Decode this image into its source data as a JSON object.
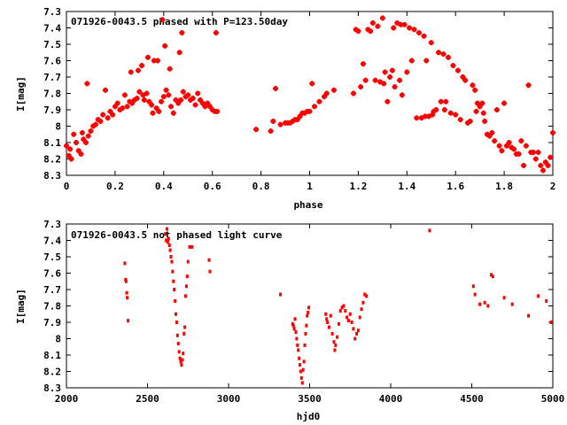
{
  "chart_data": [
    {
      "type": "scatter",
      "title": "071926-0043.5 phased with P=123.50day",
      "xlabel": "phase",
      "ylabel": "I[mag]",
      "xlim": [
        0,
        2
      ],
      "ylim": [
        8.3,
        7.3
      ],
      "y_inverted": true,
      "grid": false,
      "marker_color": "#ff0000",
      "marker_style": "cross",
      "x_ticks": [
        "0",
        "0.2",
        "0.4",
        "0.6",
        "0.8",
        "1",
        "1.2",
        "1.4",
        "1.6",
        "1.8",
        "2"
      ],
      "y_ticks": [
        "7.3",
        "7.4",
        "7.5",
        "7.6",
        "7.7",
        "7.8",
        "7.9",
        "8",
        "8.1",
        "8.2",
        "8.3"
      ],
      "points": [
        [
          0.0,
          8.12
        ],
        [
          0.01,
          8.18
        ],
        [
          0.015,
          8.14
        ],
        [
          0.02,
          8.2
        ],
        [
          0.03,
          8.05
        ],
        [
          0.04,
          8.1
        ],
        [
          0.05,
          8.15
        ],
        [
          0.06,
          8.17
        ],
        [
          0.065,
          8.04
        ],
        [
          0.07,
          8.08
        ],
        [
          0.08,
          8.1
        ],
        [
          0.085,
          7.74
        ],
        [
          0.09,
          8.06
        ],
        [
          0.1,
          8.03
        ],
        [
          0.11,
          8.0
        ],
        [
          0.12,
          7.99
        ],
        [
          0.13,
          7.96
        ],
        [
          0.14,
          7.97
        ],
        [
          0.15,
          7.93
        ],
        [
          0.16,
          7.78
        ],
        [
          0.17,
          7.95
        ],
        [
          0.18,
          7.91
        ],
        [
          0.19,
          7.93
        ],
        [
          0.2,
          7.88
        ],
        [
          0.21,
          7.86
        ],
        [
          0.22,
          7.9
        ],
        [
          0.23,
          7.89
        ],
        [
          0.24,
          7.81
        ],
        [
          0.25,
          7.88
        ],
        [
          0.26,
          7.85
        ],
        [
          0.265,
          7.67
        ],
        [
          0.27,
          7.86
        ],
        [
          0.28,
          7.84
        ],
        [
          0.29,
          7.83
        ],
        [
          0.295,
          7.66
        ],
        [
          0.3,
          7.79
        ],
        [
          0.31,
          7.63
        ],
        [
          0.315,
          7.81
        ],
        [
          0.32,
          7.84
        ],
        [
          0.33,
          7.8
        ],
        [
          0.335,
          7.58
        ],
        [
          0.34,
          7.85
        ],
        [
          0.35,
          7.87
        ],
        [
          0.355,
          7.92
        ],
        [
          0.36,
          7.6
        ],
        [
          0.37,
          7.89
        ],
        [
          0.375,
          7.6
        ],
        [
          0.38,
          7.91
        ],
        [
          0.39,
          7.85
        ],
        [
          0.395,
          7.35
        ],
        [
          0.4,
          7.82
        ],
        [
          0.405,
          7.51
        ],
        [
          0.41,
          7.78
        ],
        [
          0.42,
          7.81
        ],
        [
          0.425,
          7.65
        ],
        [
          0.43,
          7.88
        ],
        [
          0.44,
          7.92
        ],
        [
          0.45,
          7.84
        ],
        [
          0.46,
          7.86
        ],
        [
          0.465,
          7.55
        ],
        [
          0.47,
          7.84
        ],
        [
          0.475,
          7.43
        ],
        [
          0.48,
          7.79
        ],
        [
          0.49,
          7.82
        ],
        [
          0.5,
          7.81
        ],
        [
          0.51,
          7.84
        ],
        [
          0.52,
          7.83
        ],
        [
          0.53,
          7.87
        ],
        [
          0.54,
          7.8
        ],
        [
          0.55,
          7.84
        ],
        [
          0.56,
          7.86
        ],
        [
          0.57,
          7.88
        ],
        [
          0.58,
          7.86
        ],
        [
          0.59,
          7.88
        ],
        [
          0.6,
          7.9
        ],
        [
          0.61,
          7.91
        ],
        [
          0.615,
          7.43
        ],
        [
          0.62,
          7.91
        ],
        [
          0.78,
          8.02
        ],
        [
          0.84,
          8.03
        ],
        [
          0.85,
          7.97
        ],
        [
          0.86,
          7.77
        ],
        [
          0.88,
          7.99
        ],
        [
          0.9,
          7.98
        ],
        [
          0.91,
          7.98
        ],
        [
          0.92,
          7.98
        ],
        [
          0.93,
          7.97
        ],
        [
          0.94,
          7.96
        ],
        [
          0.95,
          7.96
        ],
        [
          0.96,
          7.94
        ],
        [
          0.97,
          7.92
        ],
        [
          0.98,
          7.92
        ],
        [
          0.99,
          7.91
        ],
        [
          1.0,
          7.91
        ],
        [
          1.01,
          7.74
        ],
        [
          1.02,
          7.88
        ],
        [
          1.04,
          7.85
        ],
        [
          1.06,
          7.82
        ],
        [
          1.07,
          7.8
        ],
        [
          1.1,
          7.78
        ],
        [
          1.18,
          7.8
        ],
        [
          1.19,
          7.41
        ],
        [
          1.2,
          7.42
        ],
        [
          1.21,
          7.76
        ],
        [
          1.22,
          7.62
        ],
        [
          1.23,
          7.72
        ],
        [
          1.24,
          7.41
        ],
        [
          1.25,
          7.42
        ],
        [
          1.26,
          7.37
        ],
        [
          1.27,
          7.72
        ],
        [
          1.28,
          7.39
        ],
        [
          1.29,
          7.73
        ],
        [
          1.3,
          7.34
        ],
        [
          1.305,
          7.74
        ],
        [
          1.31,
          7.67
        ],
        [
          1.32,
          7.85
        ],
        [
          1.33,
          7.7
        ],
        [
          1.34,
          7.66
        ],
        [
          1.345,
          7.4
        ],
        [
          1.35,
          7.76
        ],
        [
          1.36,
          7.37
        ],
        [
          1.37,
          7.72
        ],
        [
          1.375,
          7.38
        ],
        [
          1.38,
          7.81
        ],
        [
          1.39,
          7.38
        ],
        [
          1.4,
          7.67
        ],
        [
          1.41,
          7.4
        ],
        [
          1.42,
          7.6
        ],
        [
          1.43,
          7.41
        ],
        [
          1.44,
          7.95
        ],
        [
          1.45,
          7.43
        ],
        [
          1.46,
          7.95
        ],
        [
          1.47,
          7.45
        ],
        [
          1.475,
          7.94
        ],
        [
          1.48,
          7.6
        ],
        [
          1.49,
          7.94
        ],
        [
          1.5,
          7.49
        ],
        [
          1.505,
          7.93
        ],
        [
          1.51,
          7.91
        ],
        [
          1.52,
          7.9
        ],
        [
          1.53,
          7.55
        ],
        [
          1.54,
          7.85
        ],
        [
          1.55,
          7.56
        ],
        [
          1.555,
          7.9
        ],
        [
          1.56,
          7.85
        ],
        [
          1.57,
          7.58
        ],
        [
          1.58,
          7.92
        ],
        [
          1.59,
          7.63
        ],
        [
          1.6,
          7.93
        ],
        [
          1.61,
          7.66
        ],
        [
          1.62,
          7.96
        ],
        [
          1.63,
          7.7
        ],
        [
          1.64,
          7.72
        ],
        [
          1.65,
          7.98
        ],
        [
          1.66,
          7.97
        ],
        [
          1.67,
          7.75
        ],
        [
          1.68,
          7.78
        ],
        [
          1.685,
          7.91
        ],
        [
          1.69,
          7.86
        ],
        [
          1.7,
          7.88
        ],
        [
          1.71,
          7.86
        ],
        [
          1.715,
          7.92
        ],
        [
          1.72,
          7.97
        ],
        [
          1.73,
          8.05
        ],
        [
          1.74,
          8.06
        ],
        [
          1.75,
          8.04
        ],
        [
          1.76,
          8.09
        ],
        [
          1.77,
          7.9
        ],
        [
          1.78,
          8.12
        ],
        [
          1.79,
          8.15
        ],
        [
          1.8,
          7.86
        ],
        [
          1.81,
          8.12
        ],
        [
          1.82,
          8.1
        ],
        [
          1.83,
          8.13
        ],
        [
          1.84,
          8.14
        ],
        [
          1.85,
          8.17
        ],
        [
          1.86,
          8.17
        ],
        [
          1.87,
          8.09
        ],
        [
          1.88,
          8.24
        ],
        [
          1.89,
          8.12
        ],
        [
          1.9,
          7.75
        ],
        [
          1.91,
          8.16
        ],
        [
          1.92,
          8.16
        ],
        [
          1.93,
          8.2
        ],
        [
          1.94,
          8.16
        ],
        [
          1.95,
          8.24
        ],
        [
          1.96,
          8.27
        ],
        [
          1.97,
          8.22
        ],
        [
          1.98,
          8.24
        ],
        [
          1.99,
          8.19
        ],
        [
          2.0,
          8.04
        ]
      ]
    },
    {
      "type": "scatter",
      "title": "071926-0043.5 not phased light curve",
      "xlabel": "hjd0",
      "ylabel": "I[mag]",
      "xlim": [
        2000,
        5000
      ],
      "ylim": [
        8.3,
        7.3
      ],
      "y_inverted": true,
      "grid": false,
      "marker_color": "#ff0000",
      "marker_style": "dot",
      "x_ticks": [
        "2000",
        "2500",
        "3000",
        "3500",
        "4000",
        "4500",
        "5000"
      ],
      "y_ticks": [
        "7.3",
        "7.4",
        "7.5",
        "7.6",
        "7.7",
        "7.8",
        "7.9",
        "8",
        "8.1",
        "8.2",
        "8.3"
      ],
      "points": [
        [
          2360,
          7.54
        ],
        [
          2365,
          7.64
        ],
        [
          2368,
          7.65
        ],
        [
          2372,
          7.72
        ],
        [
          2375,
          7.75
        ],
        [
          2380,
          7.89
        ],
        [
          2610,
          7.36
        ],
        [
          2615,
          7.4
        ],
        [
          2620,
          7.33
        ],
        [
          2625,
          7.41
        ],
        [
          2630,
          7.39
        ],
        [
          2635,
          7.43
        ],
        [
          2640,
          7.46
        ],
        [
          2645,
          7.5
        ],
        [
          2650,
          7.53
        ],
        [
          2655,
          7.59
        ],
        [
          2660,
          7.65
        ],
        [
          2665,
          7.7
        ],
        [
          2670,
          7.77
        ],
        [
          2675,
          7.85
        ],
        [
          2680,
          7.9
        ],
        [
          2685,
          7.98
        ],
        [
          2690,
          8.03
        ],
        [
          2695,
          8.08
        ],
        [
          2700,
          8.12
        ],
        [
          2705,
          8.14
        ],
        [
          2710,
          8.16
        ],
        [
          2715,
          8.13
        ],
        [
          2720,
          8.09
        ],
        [
          2725,
          7.97
        ],
        [
          2730,
          7.93
        ],
        [
          2735,
          7.74
        ],
        [
          2740,
          7.68
        ],
        [
          2745,
          7.62
        ],
        [
          2750,
          7.53
        ],
        [
          2760,
          7.44
        ],
        [
          2775,
          7.44
        ],
        [
          2880,
          7.52
        ],
        [
          2885,
          7.59
        ],
        [
          3320,
          7.73
        ],
        [
          3395,
          7.91
        ],
        [
          3400,
          7.92
        ],
        [
          3405,
          7.94
        ],
        [
          3410,
          7.88
        ],
        [
          3415,
          7.96
        ],
        [
          3420,
          8.0
        ],
        [
          3425,
          8.04
        ],
        [
          3430,
          8.07
        ],
        [
          3435,
          8.12
        ],
        [
          3440,
          8.16
        ],
        [
          3445,
          8.2
        ],
        [
          3450,
          8.24
        ],
        [
          3455,
          8.27
        ],
        [
          3460,
          8.19
        ],
        [
          3465,
          8.14
        ],
        [
          3470,
          8.04
        ],
        [
          3475,
          7.97
        ],
        [
          3480,
          7.92
        ],
        [
          3485,
          7.86
        ],
        [
          3490,
          7.84
        ],
        [
          3495,
          7.81
        ],
        [
          3600,
          7.85
        ],
        [
          3605,
          7.88
        ],
        [
          3610,
          7.9
        ],
        [
          3620,
          7.93
        ],
        [
          3630,
          7.86
        ],
        [
          3640,
          7.97
        ],
        [
          3650,
          8.02
        ],
        [
          3655,
          8.07
        ],
        [
          3660,
          8.04
        ],
        [
          3670,
          7.99
        ],
        [
          3680,
          7.91
        ],
        [
          3690,
          7.83
        ],
        [
          3700,
          7.81
        ],
        [
          3710,
          7.8
        ],
        [
          3720,
          7.83
        ],
        [
          3730,
          7.87
        ],
        [
          3740,
          7.89
        ],
        [
          3750,
          7.85
        ],
        [
          3760,
          7.9
        ],
        [
          3770,
          7.94
        ],
        [
          3780,
          8.0
        ],
        [
          3790,
          7.97
        ],
        [
          3800,
          7.95
        ],
        [
          3810,
          7.87
        ],
        [
          3820,
          7.82
        ],
        [
          3830,
          7.78
        ],
        [
          3840,
          7.73
        ],
        [
          3850,
          7.74
        ],
        [
          4240,
          7.34
        ],
        [
          4510,
          7.68
        ],
        [
          4520,
          7.73
        ],
        [
          4550,
          7.79
        ],
        [
          4580,
          7.78
        ],
        [
          4600,
          7.8
        ],
        [
          4620,
          7.61
        ],
        [
          4630,
          7.62
        ],
        [
          4700,
          7.75
        ],
        [
          4750,
          7.79
        ],
        [
          4850,
          7.86
        ],
        [
          4910,
          7.74
        ],
        [
          4960,
          7.77
        ],
        [
          4990,
          7.9
        ]
      ]
    }
  ]
}
